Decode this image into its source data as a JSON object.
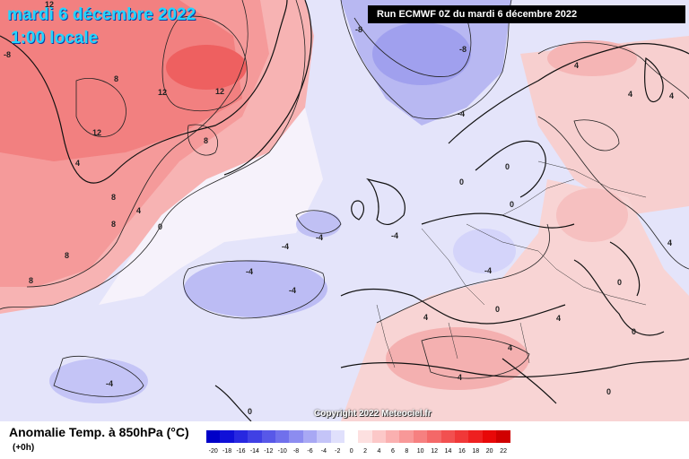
{
  "header": {
    "date": "mardi 6 décembre 2022",
    "time": "1:00 locale",
    "run": "Run ECMWF 0Z du mardi 6 décembre 2022"
  },
  "field_label": "Anomalie Temp. à 850hPa (°C)",
  "lead_label": "(+0h)",
  "copyright": "Copyright 2022 Meteociel.fr",
  "scale": {
    "values": [
      "-20",
      "-18",
      "-16",
      "-14",
      "-12",
      "-10",
      "-8",
      "-6",
      "-4",
      "-2",
      "0",
      "2",
      "4",
      "6",
      "8",
      "10",
      "12",
      "14",
      "16",
      "18",
      "20",
      "22"
    ],
    "colors": [
      "#0000c8",
      "#1010d8",
      "#2828e0",
      "#4040e4",
      "#5858e8",
      "#7070ec",
      "#8c8cf0",
      "#a8a8f4",
      "#c4c4f8",
      "#e0e0fc",
      "#ffffff",
      "#fde0e0",
      "#fcc8c8",
      "#fab0b0",
      "#f89898",
      "#f68080",
      "#f46868",
      "#f25050",
      "#f03838",
      "#ee2020",
      "#e80808",
      "#d00000"
    ]
  },
  "map_labels": [
    {
      "text": "12"
    },
    {
      "text": "-8"
    },
    {
      "text": "-8"
    },
    {
      "text": "-8"
    },
    {
      "text": "8"
    },
    {
      "text": "12"
    },
    {
      "text": "12"
    },
    {
      "text": "12"
    },
    {
      "text": "8"
    },
    {
      "text": "4"
    },
    {
      "text": "-4"
    },
    {
      "text": "4"
    },
    {
      "text": "4"
    },
    {
      "text": "4"
    },
    {
      "text": "8"
    },
    {
      "text": "0"
    },
    {
      "text": "0"
    },
    {
      "text": "8"
    },
    {
      "text": "8"
    },
    {
      "text": "8"
    },
    {
      "text": "4"
    },
    {
      "text": "0"
    },
    {
      "text": "-4"
    },
    {
      "text": "-4"
    },
    {
      "text": "-4"
    },
    {
      "text": "-4"
    },
    {
      "text": "-4"
    },
    {
      "text": "-4"
    },
    {
      "text": "0"
    },
    {
      "text": "4"
    },
    {
      "text": "4"
    },
    {
      "text": "0"
    },
    {
      "text": "4"
    },
    {
      "text": "0"
    },
    {
      "text": "0"
    },
    {
      "text": "0"
    },
    {
      "text": "-4"
    },
    {
      "text": "4"
    },
    {
      "text": "0"
    },
    {
      "text": "4"
    }
  ]
}
